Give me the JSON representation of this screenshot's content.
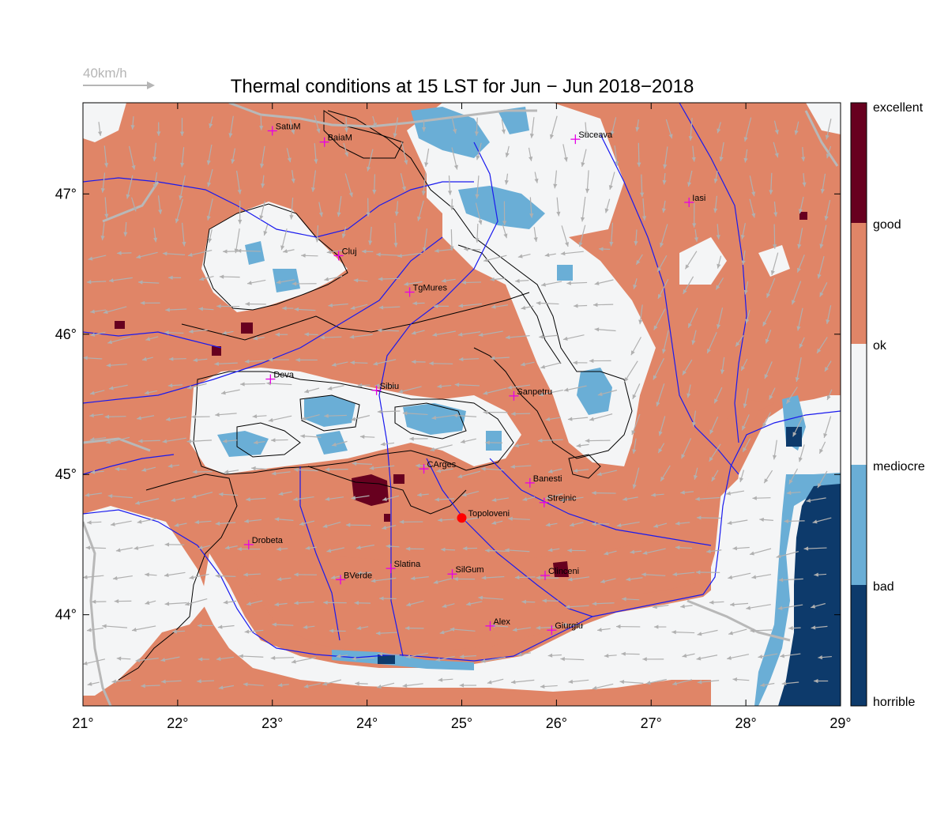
{
  "title": "Thermal conditions at 15 LST for Jun − Jun  2018−2018",
  "wind_scale_label": "40km/h",
  "colors": {
    "excellent": "#67001f",
    "good": "#670020",
    "ok": "#e08567",
    "mediocre": "#f4f5f6",
    "bad": "#6aaed6",
    "horrible": "#0d3a6b",
    "rivers": "#1a1aee",
    "contours": "#000000",
    "borders": "#b8b8b8",
    "city_marker": "#e600e6",
    "highlight_marker": "#ff0000",
    "wind_arrows": "#b0b0b0"
  },
  "axes": {
    "x_ticks": [
      "21°",
      "22°",
      "23°",
      "24°",
      "25°",
      "26°",
      "27°",
      "28°",
      "29°"
    ],
    "y_ticks": [
      "47°",
      "46°",
      "45°",
      "44°"
    ],
    "lon_range": [
      21,
      29
    ],
    "lat_range": [
      43.35,
      47.65
    ]
  },
  "legend": {
    "labels": [
      "excellent",
      "good",
      "ok",
      "mediocre",
      "bad",
      "horrible"
    ]
  },
  "cities": [
    {
      "name": "SatuM",
      "lon": 23.0,
      "lat": 47.45
    },
    {
      "name": "BaiaM",
      "lon": 23.55,
      "lat": 47.37
    },
    {
      "name": "Suceava",
      "lon": 26.2,
      "lat": 47.39
    },
    {
      "name": "Iasi",
      "lon": 27.4,
      "lat": 46.94
    },
    {
      "name": "Cluj",
      "lon": 23.7,
      "lat": 46.56
    },
    {
      "name": "TgMures",
      "lon": 24.45,
      "lat": 46.3
    },
    {
      "name": "Deva",
      "lon": 22.98,
      "lat": 45.68
    },
    {
      "name": "Sibiu",
      "lon": 24.1,
      "lat": 45.6
    },
    {
      "name": "Sanpetru",
      "lon": 25.55,
      "lat": 45.56
    },
    {
      "name": "CArges",
      "lon": 24.6,
      "lat": 45.04
    },
    {
      "name": "Banesti",
      "lon": 25.72,
      "lat": 44.94
    },
    {
      "name": "Strejnic",
      "lon": 25.87,
      "lat": 44.8
    },
    {
      "name": "Drobeta",
      "lon": 22.75,
      "lat": 44.5
    },
    {
      "name": "Slatina",
      "lon": 24.25,
      "lat": 44.33
    },
    {
      "name": "SilGum",
      "lon": 24.9,
      "lat": 44.29
    },
    {
      "name": "Clinceni",
      "lon": 25.88,
      "lat": 44.28
    },
    {
      "name": "BVerde",
      "lon": 23.72,
      "lat": 44.25
    },
    {
      "name": "Alex",
      "lon": 25.3,
      "lat": 43.92
    },
    {
      "name": "Giurgiu",
      "lon": 25.95,
      "lat": 43.89
    }
  ],
  "highlight": {
    "name": "Topoloveni",
    "lon": 25.0,
    "lat": 44.69
  }
}
